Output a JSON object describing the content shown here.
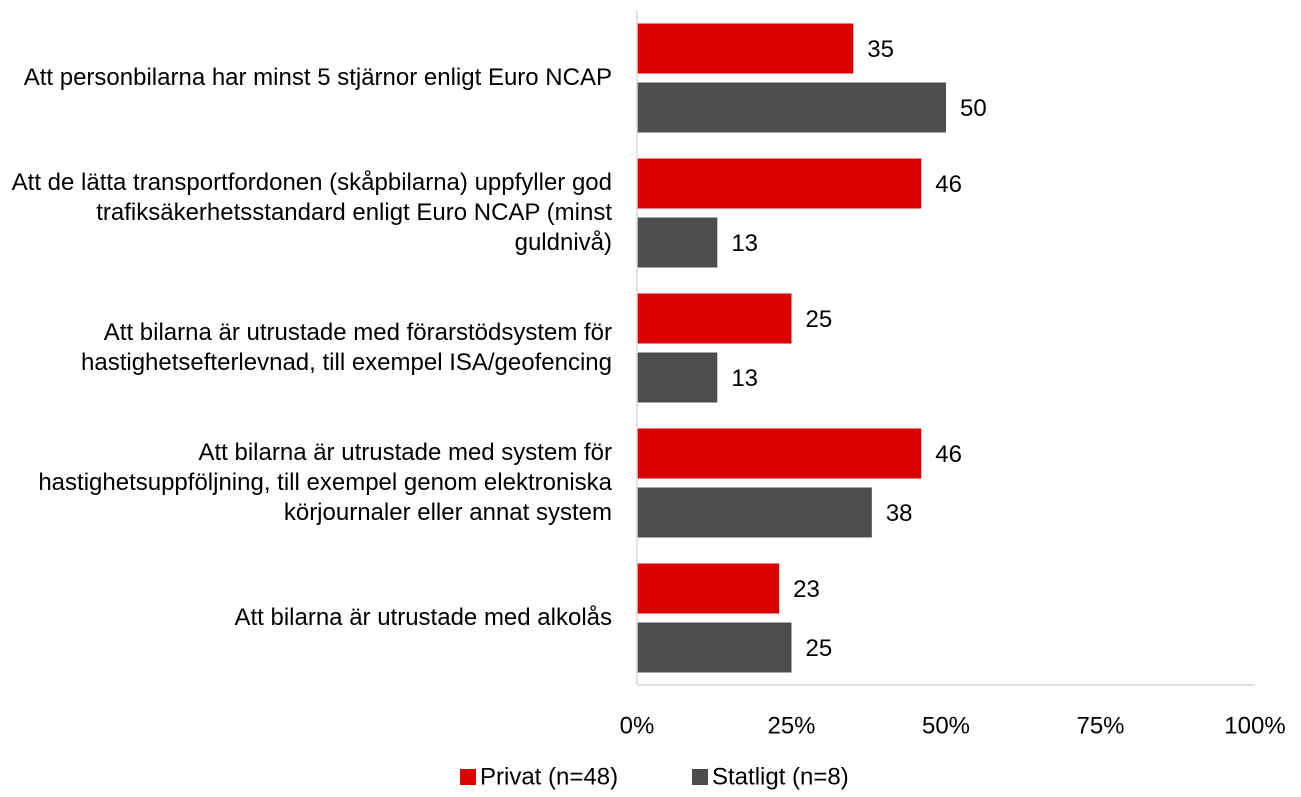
{
  "chart_data": {
    "type": "bar",
    "orientation": "horizontal",
    "categories": [
      "Att personbilarna har minst 5 stjärnor enligt Euro NCAP",
      "Att de lätta transportfordonen (skåpbilarna) uppfyller god trafiksäkerhetsstandard enligt Euro NCAP (minst guldnivå)",
      "Att bilarna är utrustade med förarstödsystem för hastighetsefterlevnad, till exempel ISA/geofencing",
      "Att bilarna är utrustade med system för hastighetsuppföljning, till exempel genom elektroniska körjournaler eller annat system",
      "Att bilarna är utrustade med alkolås"
    ],
    "series": [
      {
        "name": "Privat (n=48)",
        "color": "#d90000",
        "values": [
          35,
          46,
          25,
          46,
          23
        ]
      },
      {
        "name": "Statligt (n=8)",
        "color": "#4d4d4d",
        "values": [
          50,
          13,
          13,
          38,
          25
        ]
      }
    ],
    "xlim": [
      0,
      100
    ],
    "xticks": [
      {
        "value": 0,
        "label": "0%"
      },
      {
        "value": 25,
        "label": "25%"
      },
      {
        "value": 50,
        "label": "50%"
      },
      {
        "value": 75,
        "label": "75%"
      },
      {
        "value": 100,
        "label": "100%"
      }
    ],
    "grid": false,
    "legend": "bottom"
  }
}
